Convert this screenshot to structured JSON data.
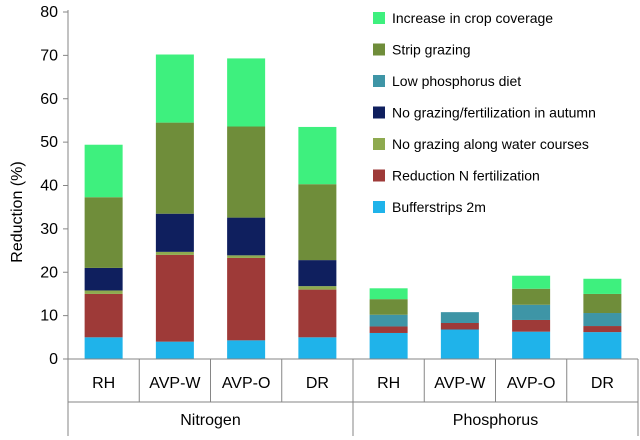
{
  "chart_data": {
    "type": "bar",
    "stacked": true,
    "title": "",
    "xlabel": "",
    "ylabel": "Reduction (%)",
    "ylim": [
      0,
      80
    ],
    "yticks": [
      0,
      10,
      20,
      30,
      40,
      50,
      60,
      70,
      80
    ],
    "grid": false,
    "legend_position": "top-right",
    "categories": [
      "RH",
      "AVP-W",
      "AVP-O",
      "DR",
      "RH",
      "AVP-W",
      "AVP-O",
      "DR"
    ],
    "groups": [
      {
        "label": "Nitrogen",
        "categories": [
          "RH",
          "AVP-W",
          "AVP-O",
          "DR"
        ]
      },
      {
        "label": "Phosphorus",
        "categories": [
          "RH",
          "AVP-W",
          "AVP-O",
          "DR"
        ]
      }
    ],
    "series": [
      {
        "name": "Bufferstrips 2m",
        "color": "#1FB3EA",
        "values": [
          5.0,
          4.0,
          4.3,
          5.0,
          6.0,
          6.8,
          6.3,
          6.2
        ]
      },
      {
        "name": "Reduction N fertilization",
        "color": "#9E3A38",
        "values": [
          10.0,
          20.0,
          19.0,
          11.0,
          1.5,
          1.5,
          2.7,
          1.4
        ]
      },
      {
        "name": "No grazing along water courses",
        "color": "#8EAA4F",
        "values": [
          0.8,
          0.7,
          0.6,
          0.8,
          0,
          0,
          0,
          0
        ]
      },
      {
        "name": "No grazing/fertilization in autumn",
        "color": "#0F1F5E",
        "values": [
          5.2,
          8.8,
          8.7,
          6.0,
          0,
          0,
          0,
          0
        ]
      },
      {
        "name": "Low phosphorus diet",
        "color": "#3E95A6",
        "values": [
          0,
          0,
          0,
          0,
          2.7,
          2.5,
          3.5,
          3.0
        ]
      },
      {
        "name": "Strip grazing",
        "color": "#6F8D3A",
        "values": [
          16.3,
          21.0,
          21.0,
          17.5,
          3.6,
          0,
          3.7,
          4.4
        ]
      },
      {
        "name": "Increase in crop coverage",
        "color": "#3EF07E",
        "values": [
          12.1,
          15.7,
          15.7,
          13.2,
          2.5,
          0,
          3.0,
          3.5
        ]
      }
    ]
  }
}
